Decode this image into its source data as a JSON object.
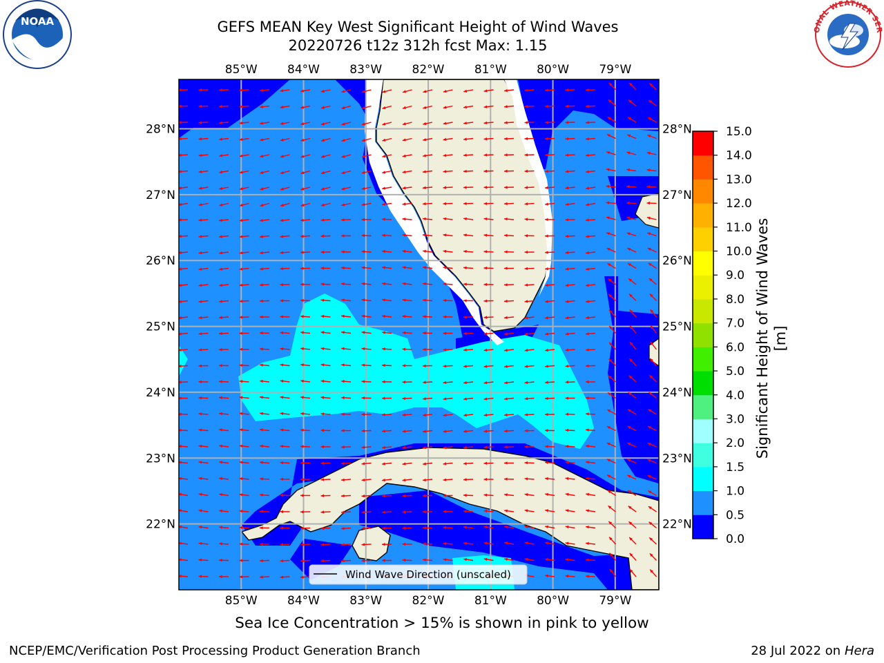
{
  "header": {
    "title_line1": "GEFS MEAN Key West Significant Height of Wind Waves",
    "title_line2": "20220726 t12z 312h fcst   Max: 1.15"
  },
  "logos": {
    "left": {
      "text": "NOAA",
      "icon": "noaa-logo-icon"
    },
    "right": {
      "text": "NATIONAL WEATHER SERVICE",
      "icon": "nws-logo-icon"
    }
  },
  "map": {
    "lon_ticks": [
      "85°W",
      "84°W",
      "83°W",
      "82°W",
      "81°W",
      "80°W",
      "79°W"
    ],
    "lat_ticks": [
      "28°N",
      "27°N",
      "26°N",
      "25°N",
      "24°N",
      "23°N",
      "22°N"
    ],
    "lon_range": [
      -86.0,
      -78.3
    ],
    "lat_range": [
      21.0,
      28.75
    ],
    "grid": true,
    "legend": {
      "label": "Wind Wave Direction (unscaled)",
      "placement": "bottom-center"
    },
    "colors": {
      "ocean_low": "#0000ff",
      "ocean_mid": "#1e90ff",
      "ocean_high": "#00ffff",
      "land": "#efefdb",
      "arrow": "#ff0000",
      "grid": "#b0b0b0"
    }
  },
  "colorbar": {
    "label": "Significant Height of Wind Waves [m]",
    "levels": [
      "0.0",
      "0.5",
      "1.0",
      "1.5",
      "2.0",
      "3.0",
      "4.0",
      "5.0",
      "6.0",
      "7.0",
      "8.0",
      "9.0",
      "10.0",
      "11.0",
      "12.0",
      "13.0",
      "14.0",
      "15.0"
    ],
    "colors": [
      "#0000ff",
      "#1e90ff",
      "#00ffff",
      "#40ffe0",
      "#a0ffff",
      "#50f080",
      "#00dd00",
      "#40ee00",
      "#90e000",
      "#c8e800",
      "#eaf000",
      "#ffff00",
      "#ffd000",
      "#ffb000",
      "#ff8800",
      "#ff5500",
      "#ff0000"
    ]
  },
  "subtitle": "Sea Ice Concentration > 15% is shown in pink to yellow",
  "footer": {
    "left": "NCEP/EMC/Verification Post Processing Product Generation Branch",
    "right_date": "28 Jul 2022 on ",
    "right_host": "Hera"
  }
}
